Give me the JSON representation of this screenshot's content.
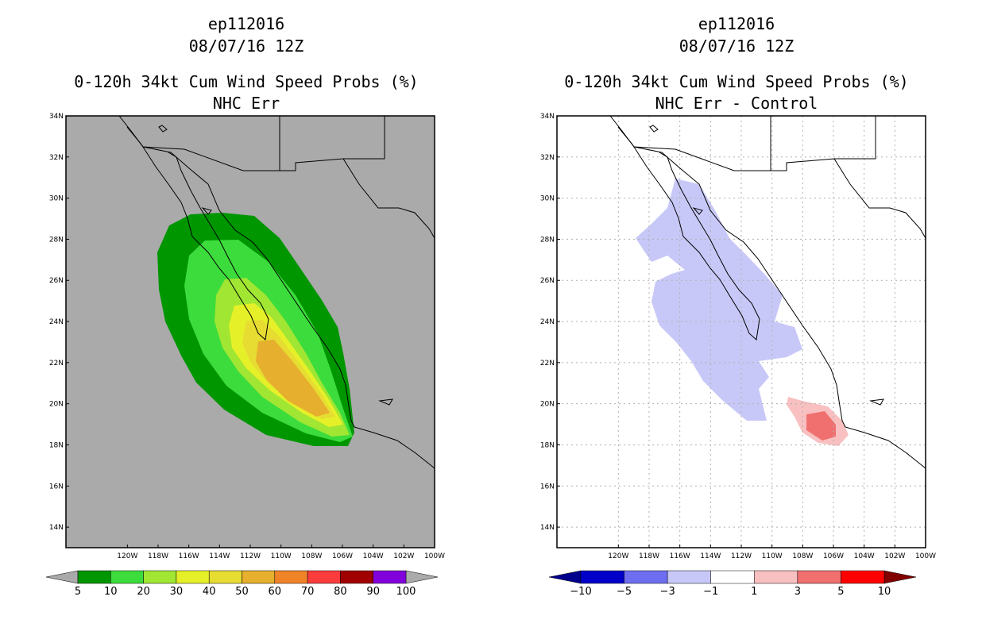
{
  "chart_data": [
    {
      "type": "heatmap",
      "title": [
        "ep112016",
        "08/07/16 12Z",
        "0-120h 34kt Cum Wind Speed Probs (%)",
        "NHC Err"
      ],
      "xlim": [
        -124,
        -100
      ],
      "ylim": [
        13,
        34
      ],
      "x_ticks": [
        "120W",
        "118W",
        "116W",
        "114W",
        "112W",
        "110W",
        "108W",
        "106W",
        "104W",
        "102W",
        "100W"
      ],
      "y_ticks": [
        "14N",
        "16N",
        "18N",
        "20N",
        "22N",
        "24N",
        "26N",
        "28N",
        "30N",
        "32N",
        "34N"
      ],
      "colorbar": {
        "labels": [
          "5",
          "10",
          "20",
          "30",
          "40",
          "50",
          "60",
          "70",
          "80",
          "90",
          "100"
        ],
        "colors": [
          "#009600",
          "#3cdc3c",
          "#a0e632",
          "#e6f028",
          "#e6dc32",
          "#e6af2d",
          "#f08228",
          "#fa3c3c",
          "#a00000",
          "#8200dc"
        ],
        "under_color": "#aaaaaa",
        "over_color": "#aaaaaa"
      },
      "background": "#aaaaaa",
      "grid": false
    },
    {
      "type": "heatmap",
      "title": [
        "ep112016",
        "08/07/16 12Z",
        "0-120h 34kt Cum Wind Speed Probs (%)",
        "NHC Err - Control"
      ],
      "xlim": [
        -124,
        -100
      ],
      "ylim": [
        13,
        34
      ],
      "x_ticks": [
        "120W",
        "118W",
        "116W",
        "114W",
        "112W",
        "110W",
        "108W",
        "106W",
        "104W",
        "102W",
        "100W"
      ],
      "y_ticks": [
        "14N",
        "16N",
        "18N",
        "20N",
        "22N",
        "24N",
        "26N",
        "28N",
        "30N",
        "32N",
        "34N"
      ],
      "colorbar": {
        "labels": [
          "-10",
          "-5",
          "-3",
          "-1",
          "1",
          "3",
          "5",
          "10"
        ],
        "colors": [
          "#0000c8",
          "#6e6ef0",
          "#c8c8f8",
          "#ffffff",
          "#f8c0c0",
          "#f07070",
          "#ff0000"
        ],
        "under_color": "#00008c",
        "over_color": "#820000"
      },
      "background": "#ffffff",
      "grid": true
    }
  ]
}
